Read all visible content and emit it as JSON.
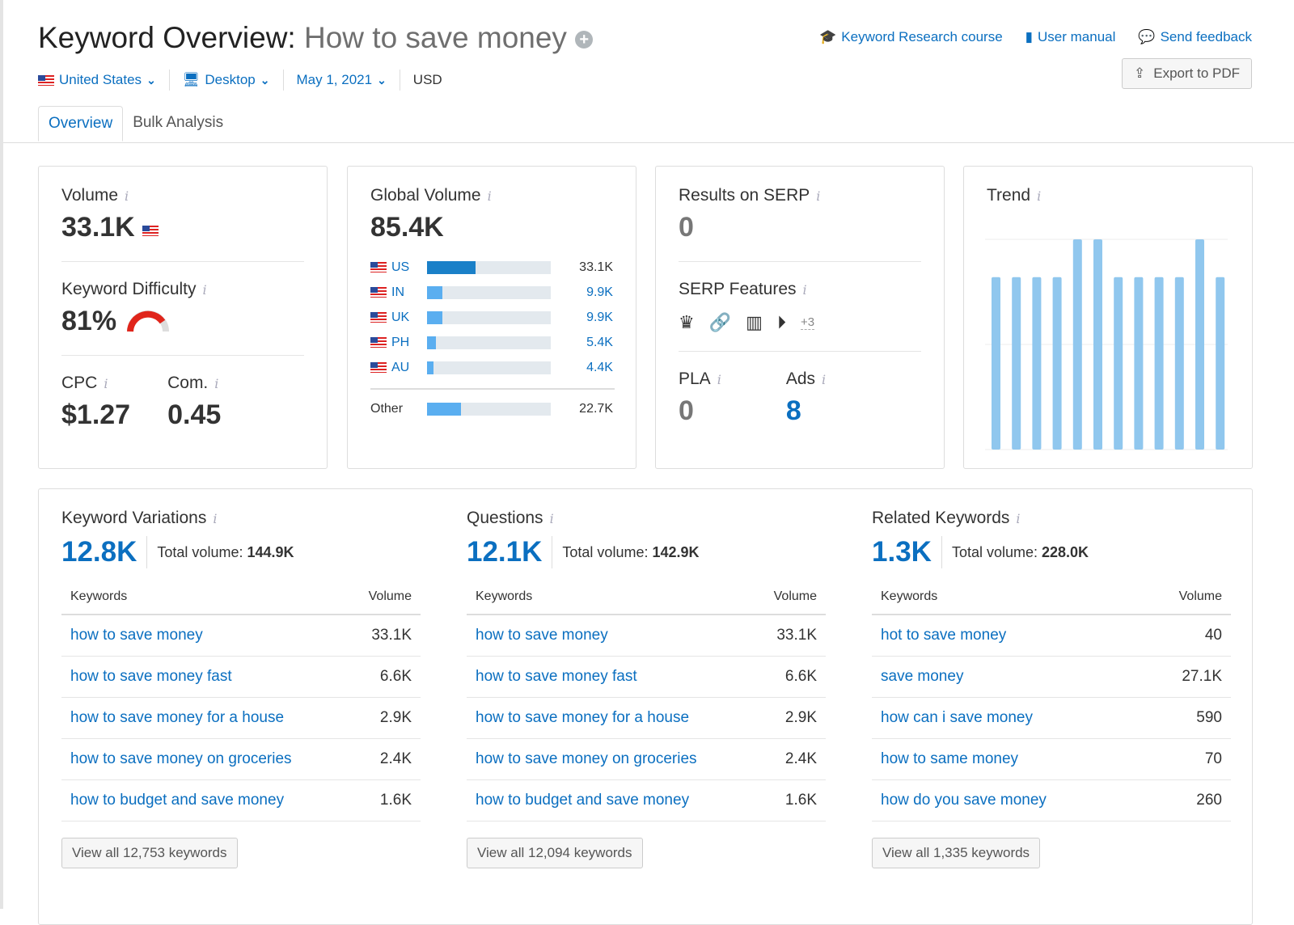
{
  "header": {
    "title": "Keyword Overview:",
    "keyword": "How to save money",
    "links": [
      "Keyword Research course",
      "User manual",
      "Send feedback"
    ],
    "export": "Export to PDF"
  },
  "filters": {
    "country": "United States",
    "device": "Desktop",
    "date": "May 1, 2021",
    "currency": "USD"
  },
  "tabs": [
    "Overview",
    "Bulk Analysis"
  ],
  "volume": {
    "label": "Volume",
    "value": "33.1K",
    "kd_label": "Keyword Difficulty",
    "kd": "81%",
    "kd_fraction": 0.81,
    "cpc_label": "CPC",
    "cpc": "$1.27",
    "com_label": "Com.",
    "com": "0.45"
  },
  "global": {
    "label": "Global Volume",
    "value": "85.4K",
    "rows": [
      {
        "cc": "US",
        "v": "33.1K",
        "f": 0.39
      },
      {
        "cc": "IN",
        "v": "9.9K",
        "f": 0.12
      },
      {
        "cc": "UK",
        "v": "9.9K",
        "f": 0.12
      },
      {
        "cc": "PH",
        "v": "5.4K",
        "f": 0.07
      },
      {
        "cc": "AU",
        "v": "4.4K",
        "f": 0.05
      }
    ],
    "other_label": "Other",
    "other": "22.7K",
    "other_f": 0.27
  },
  "serp": {
    "label": "Results on SERP",
    "value": "0",
    "features_label": "SERP Features",
    "more": "+3",
    "pla_label": "PLA",
    "pla": "0",
    "ads_label": "Ads",
    "ads": "8"
  },
  "trend": {
    "label": "Trend"
  },
  "chart_data": {
    "type": "bar",
    "title": "Trend",
    "categories": [
      "1",
      "2",
      "3",
      "4",
      "5",
      "6",
      "7",
      "8",
      "9",
      "10",
      "11",
      "12"
    ],
    "values": [
      0.82,
      0.82,
      0.82,
      0.82,
      1,
      1,
      0.82,
      0.82,
      0.82,
      0.82,
      1,
      0.82
    ],
    "ylim": [
      0,
      1
    ]
  },
  "sections": [
    {
      "title": "Keyword Variations",
      "count": "12.8K",
      "total_label": "Total volume:",
      "total": "144.9K",
      "cols": [
        "Keywords",
        "Volume"
      ],
      "rows": [
        [
          "how to save money",
          "33.1K"
        ],
        [
          "how to save money fast",
          "6.6K"
        ],
        [
          "how to save money for a house",
          "2.9K"
        ],
        [
          "how to save money on groceries",
          "2.4K"
        ],
        [
          "how to budget and save money",
          "1.6K"
        ]
      ],
      "button": "View all 12,753 keywords"
    },
    {
      "title": "Questions",
      "count": "12.1K",
      "total_label": "Total volume:",
      "total": "142.9K",
      "cols": [
        "Keywords",
        "Volume"
      ],
      "rows": [
        [
          "how to save money",
          "33.1K"
        ],
        [
          "how to save money fast",
          "6.6K"
        ],
        [
          "how to save money for a house",
          "2.9K"
        ],
        [
          "how to save money on groceries",
          "2.4K"
        ],
        [
          "how to budget and save money",
          "1.6K"
        ]
      ],
      "button": "View all 12,094 keywords"
    },
    {
      "title": "Related Keywords",
      "count": "1.3K",
      "total_label": "Total volume:",
      "total": "228.0K",
      "cols": [
        "Keywords",
        "Volume"
      ],
      "rows": [
        [
          "hot to save money",
          "40"
        ],
        [
          "save money",
          "27.1K"
        ],
        [
          "how can i save money",
          "590"
        ],
        [
          "how to same money",
          "70"
        ],
        [
          "how do you save money",
          "260"
        ]
      ],
      "button": "View all 1,335 keywords"
    }
  ]
}
